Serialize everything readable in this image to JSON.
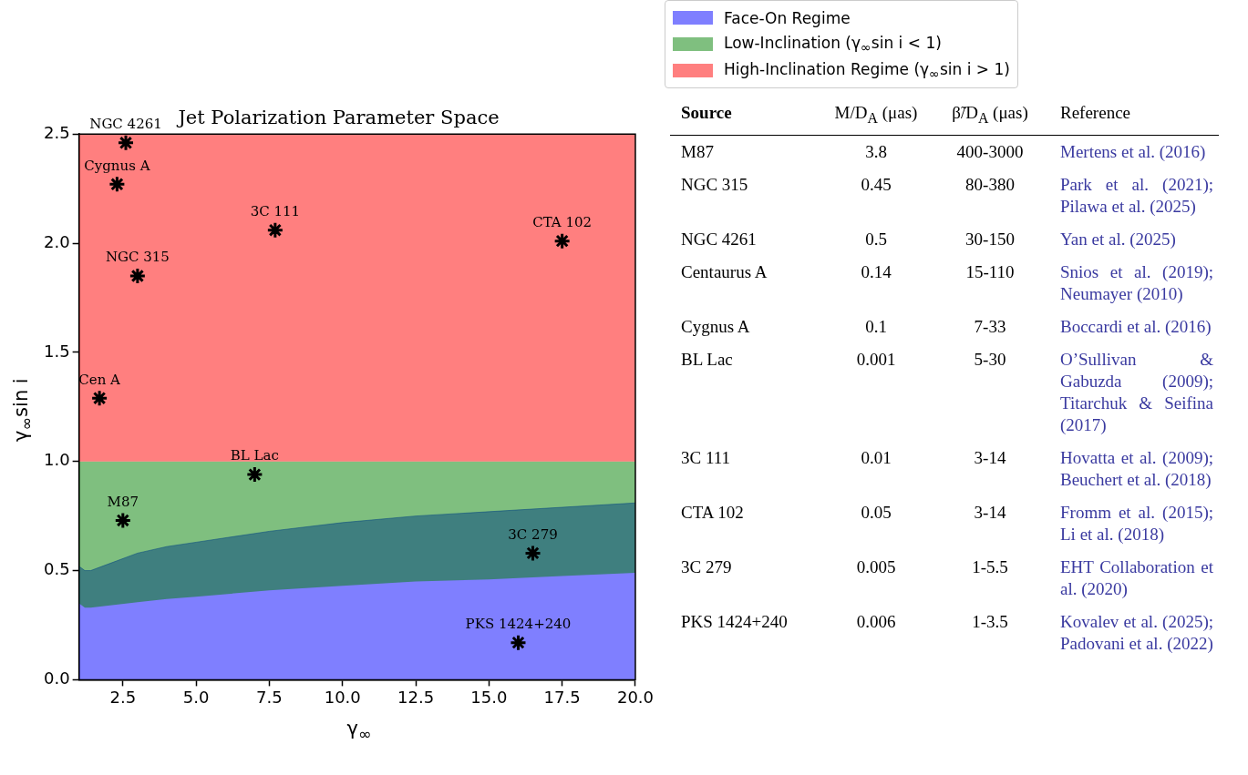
{
  "chart_data": [
    {
      "type": "area",
      "title": "Jet Polarization Parameter Space",
      "xlabel": "γ$_{∞}$",
      "ylabel": "γ$_{∞}$sin i",
      "legend": "top right",
      "xlim": [
        1,
        20
      ],
      "ylim": [
        0,
        2.5
      ],
      "xticks": [
        2.5,
        {
          "value": 5,
          "label": "5.0"
        },
        7.5,
        {
          "value": 10,
          "label": "10.0"
        },
        12.5,
        {
          "value": 15,
          "label": "15.0"
        },
        17.5,
        {
          "value": 20,
          "label": "20.0"
        }
      ],
      "yticks": [
        {
          "value": 0,
          "label": "0.0"
        },
        0.5,
        {
          "value": 1,
          "label": "1.0"
        },
        1.5,
        {
          "value": 2,
          "label": "2.0"
        },
        2.5
      ],
      "series": [
        {
          "name": "Face-On Regime",
          "type": "area",
          "color": "#0000ff",
          "x": [
            1,
            1.2,
            1.4,
            2,
            3,
            4,
            5,
            7.5,
            10,
            12.5,
            15,
            17.5,
            20
          ],
          "values": [
            0.52,
            0.5,
            0.5,
            0.53,
            0.58,
            0.61,
            0.63,
            0.68,
            0.72,
            0.75,
            0.77,
            0.79,
            0.81
          ]
        },
        {
          "name": "Low-Inclination (γ$_{∞}$sin i < 1)",
          "type": "area",
          "color": "#008000",
          "x": [
            1,
            1.2,
            1.4,
            2,
            3,
            4,
            5,
            7.5,
            10,
            12.5,
            15,
            17.5,
            20
          ],
          "values": [
            null,
            null,
            null,
            null,
            null,
            null,
            null,
            null,
            null,
            null,
            null,
            null,
            null
          ],
          "lower": [
            0.35,
            0.33,
            0.33,
            0.34,
            0.355,
            0.37,
            0.38,
            0.41,
            0.43,
            0.45,
            0.46,
            0.475,
            0.49
          ],
          "upper": [
            1,
            1,
            1,
            1,
            1,
            1,
            1,
            1,
            1,
            1,
            1,
            1,
            1
          ]
        },
        {
          "name": "High-Inclination Regime (γ$_{∞}$sin i > 1)",
          "type": "area",
          "color": "#ff0000",
          "x": [
            1,
            20
          ],
          "values": [
            null,
            null
          ],
          "lower": [
            1,
            1
          ],
          "upper": [
            2.5,
            2.5
          ]
        },
        {
          "type": "scatter",
          "color": "#000000",
          "x": [
            2.6,
            2.3,
            7.7,
            17.5,
            3.0,
            1.7,
            7.0,
            2.5,
            16.5,
            16.0
          ],
          "values": [
            2.46,
            2.27,
            2.06,
            2.01,
            1.85,
            1.29,
            0.94,
            0.73,
            0.58,
            0.17
          ]
        }
      ],
      "annotations": [
        {
          "text": "NGC 4261",
          "x": 2.6,
          "y": 2.46
        },
        {
          "text": "Cygnus A",
          "x": 2.3,
          "y": 2.27
        },
        {
          "text": "3C 111",
          "x": 7.7,
          "y": 2.06
        },
        {
          "text": "CTA 102",
          "x": 17.5,
          "y": 2.01
        },
        {
          "text": "NGC 315",
          "x": 3.0,
          "y": 1.85
        },
        {
          "text": "Cen A",
          "x": 1.7,
          "y": 1.29
        },
        {
          "text": "BL Lac",
          "x": 7.0,
          "y": 0.94
        },
        {
          "text": "M87",
          "x": 2.5,
          "y": 0.73
        },
        {
          "text": "3C 279",
          "x": 16.5,
          "y": 0.58
        },
        {
          "text": "PKS 1424+240",
          "x": 16.0,
          "y": 0.17
        }
      ]
    },
    {
      "type": "other",
      "categories": [
        "Source",
        "M/D$_{A}$ (μas)",
        "β̃/D$_{A}$ (μas)",
        "Reference"
      ],
      "annotations": [
        "M87",
        "3.8",
        "400-3000",
        "Mertens et al. (2016)",
        "NGC 315",
        "0.45",
        "80-380",
        "Park et al. (2021); Pilawa et al. (2025)",
        "NGC 4261",
        "0.5",
        "30-150",
        "Yan et al. (2025)",
        "Centaurus A",
        "0.14",
        "15-110",
        "Snios et al. (2019); Neumayer (2010)",
        "Cygnus A",
        "0.1",
        "7-33",
        "Boccardi et al. (2016)",
        "BL Lac",
        "0.001",
        "5-30",
        "O’Sullivan & Gabuzda (2009); Titarchuk & Seifina (2017)",
        "3C 111",
        "0.01",
        "3-14",
        "Hovatta et al. (2009); Beuchert et al. (2018)",
        "CTA 102",
        "0.05",
        "3-14",
        "Fromm et al. (2015); Li et al. (2018)",
        "3C 279",
        "0.005",
        "1-5.5",
        "EHT Collaboration et al. (2020)",
        "PKS 1424+240",
        "0.006",
        "1-3.5",
        "Kovalev et al. (2025); Padovani et al. (2022)"
      ]
    }
  ]
}
